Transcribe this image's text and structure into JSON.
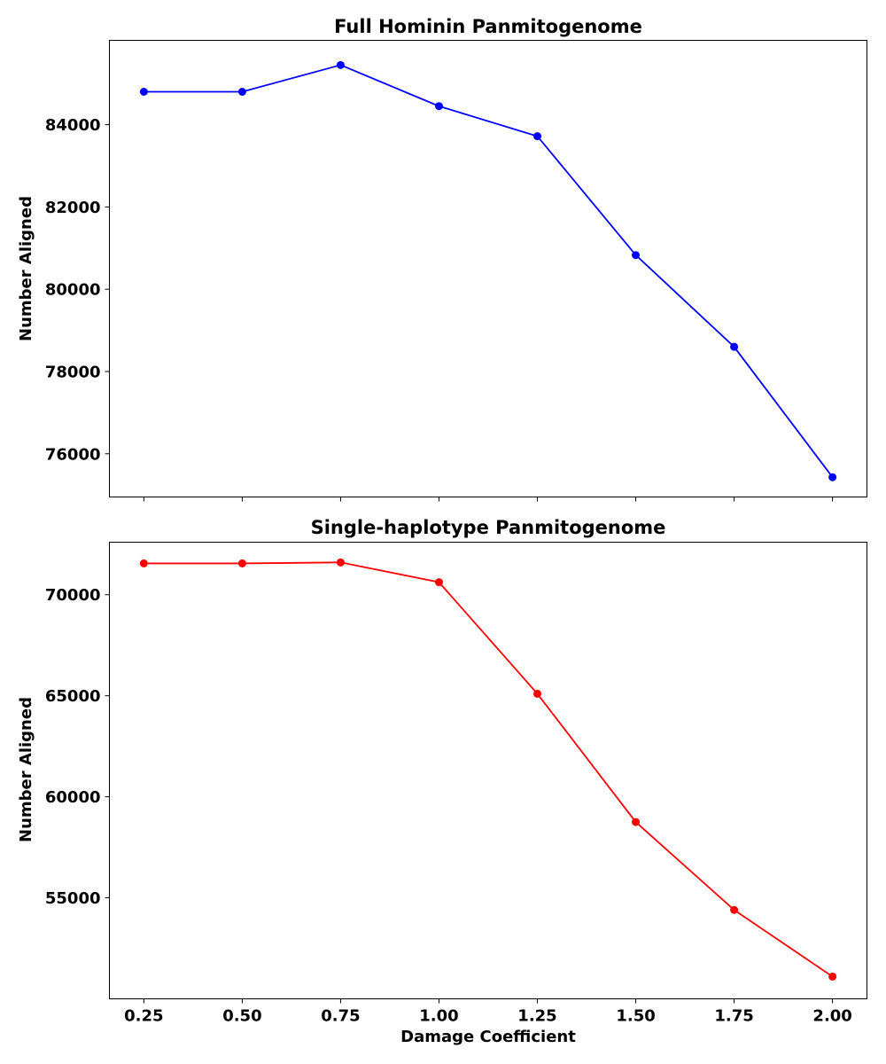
{
  "chart_data": [
    {
      "type": "line",
      "title": "Full Hominin Panmitogenome",
      "xlabel": "",
      "ylabel": "Number Aligned",
      "x": [
        0.25,
        0.5,
        0.75,
        1.0,
        1.25,
        1.5,
        1.75,
        2.0
      ],
      "xticks": [
        "0.25",
        "0.50",
        "0.75",
        "1.00",
        "1.25",
        "1.50",
        "1.75",
        "2.00"
      ],
      "xtick_labels_visible": false,
      "xlim": [
        0.1625,
        2.0875
      ],
      "ylim": [
        74950,
        86050
      ],
      "yticks": [
        "76000",
        "78000",
        "80000",
        "82000",
        "84000"
      ],
      "grid": false,
      "color": "#0000ff",
      "series": [
        {
          "values": [
            84800,
            84800,
            85450,
            84450,
            83720,
            80830,
            78600,
            75430
          ]
        }
      ]
    },
    {
      "type": "line",
      "title": "Single-haplotype Panmitogenome",
      "xlabel": "Damage Coefficient",
      "ylabel": "Number Aligned",
      "x": [
        0.25,
        0.5,
        0.75,
        1.0,
        1.25,
        1.5,
        1.75,
        2.0
      ],
      "xticks": [
        "0.25",
        "0.50",
        "0.75",
        "1.00",
        "1.25",
        "1.50",
        "1.75",
        "2.00"
      ],
      "xtick_labels_visible": true,
      "xlim": [
        0.1625,
        2.0875
      ],
      "ylim": [
        50000,
        72600
      ],
      "yticks": [
        "55000",
        "60000",
        "65000",
        "70000"
      ],
      "grid": false,
      "color": "#ff0000",
      "series": [
        {
          "values": [
            71550,
            71550,
            71600,
            70620,
            65100,
            58750,
            54400,
            51100
          ]
        }
      ]
    }
  ]
}
